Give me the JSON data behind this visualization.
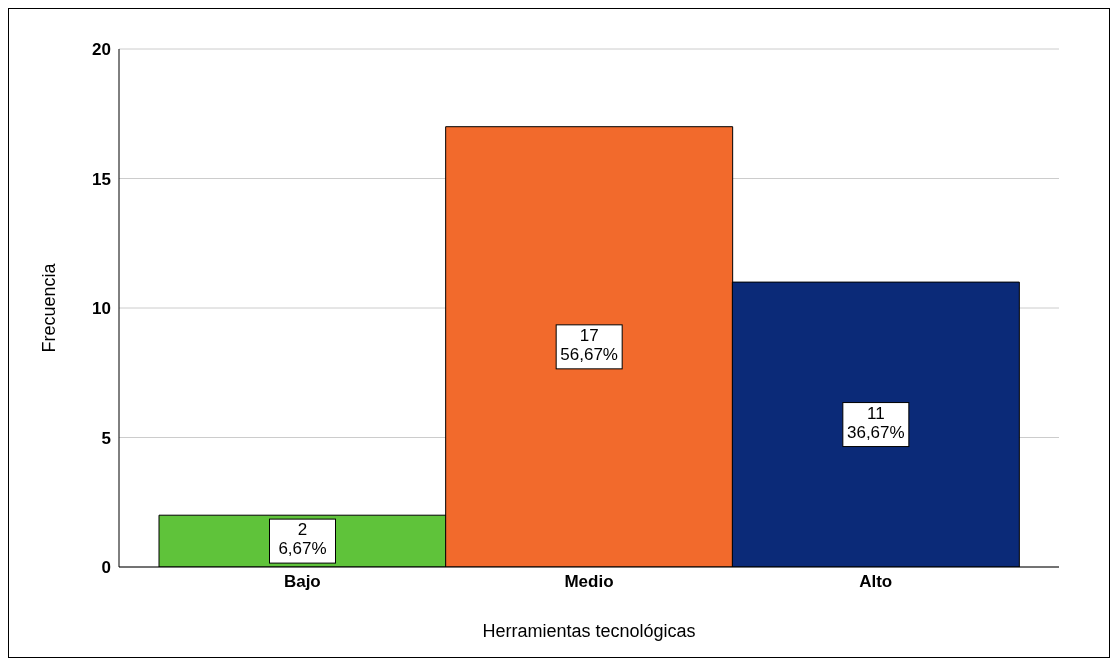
{
  "chart_data": {
    "type": "bar",
    "xlabel": "Herramientas tecnológicas",
    "ylabel": "Frecuencia",
    "categories": [
      "Bajo",
      "Medio",
      "Alto"
    ],
    "values": [
      2,
      17,
      11
    ],
    "colors": [
      "#5fc33a",
      "#f26a2c",
      "#0b2a78"
    ],
    "value_labels": [
      "2\n6,67%",
      "17\n56,67%",
      "11\n36,67%"
    ],
    "ylim": [
      0,
      20
    ],
    "yticks": [
      0,
      5,
      10,
      15,
      20
    ],
    "grid": "y"
  }
}
